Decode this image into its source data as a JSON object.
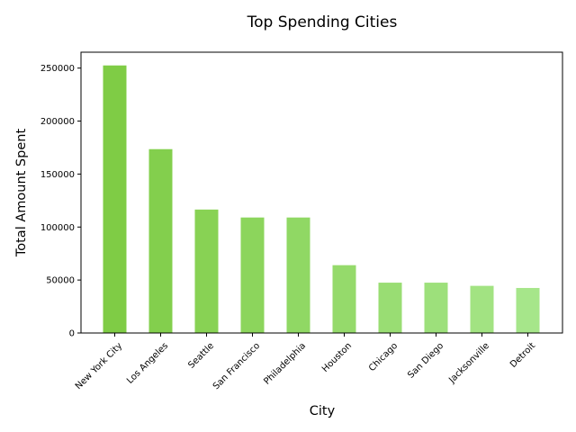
{
  "chart_data": {
    "type": "bar",
    "title": "Top Spending Cities",
    "xlabel": "City",
    "ylabel": "Total Amount Spent",
    "categories": [
      "New York City",
      "Los Angeles",
      "Seattle",
      "San Francisco",
      "Philadelphia",
      "Houston",
      "Chicago",
      "San Diego",
      "Jacksonville",
      "Detroit"
    ],
    "values": [
      252500,
      173500,
      116500,
      109000,
      109000,
      64000,
      47500,
      47500,
      44500,
      42500
    ],
    "yticks": [
      0,
      50000,
      100000,
      150000,
      200000,
      250000
    ],
    "ytick_labels": [
      "0",
      "50000",
      "100000",
      "150000",
      "200000",
      "250000"
    ],
    "ylim": [
      0,
      265000
    ],
    "grid": false,
    "legend": "none",
    "colors": {
      "gradient_start": "#7fcc45",
      "gradient_end": "#a6e68a"
    }
  }
}
